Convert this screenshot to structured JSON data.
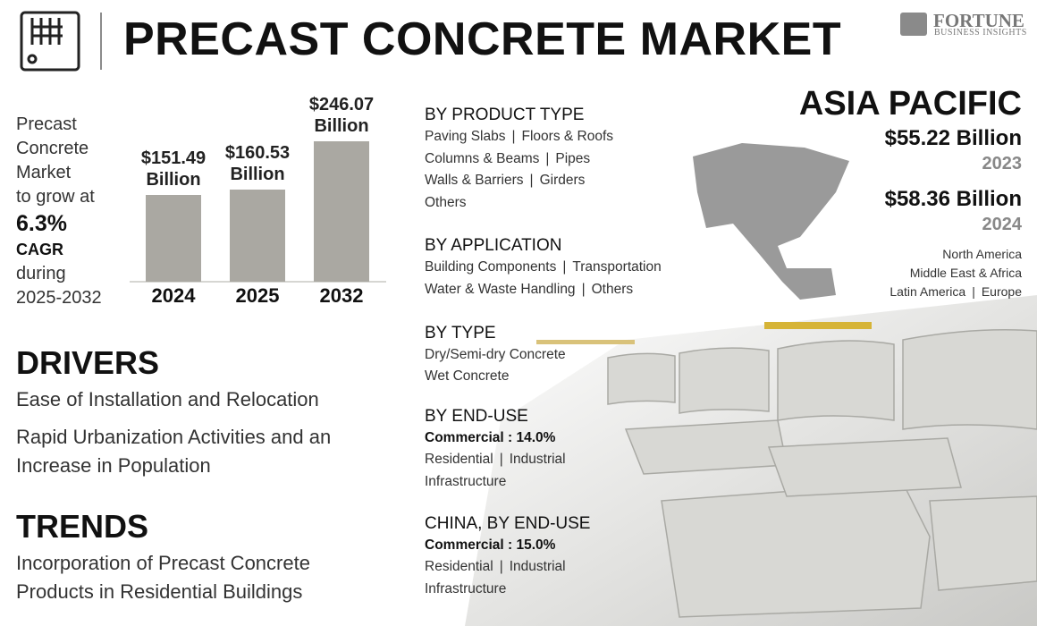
{
  "header": {
    "title": "PRECAST CONCRETE MARKET",
    "brand": "FORTUNE",
    "brand_sub": "BUSINESS INSIGHTS"
  },
  "separator": "|",
  "intro": {
    "lines": [
      "Precast",
      "Concrete",
      "Market",
      "to grow at"
    ],
    "cagr": "6.3%",
    "cagr_label": "CAGR",
    "period_lines": [
      "during",
      "2025-2032"
    ]
  },
  "chart_data": {
    "type": "bar",
    "categories": [
      "2024",
      "2025",
      "2032"
    ],
    "values": [
      151.49,
      160.53,
      246.07
    ],
    "value_labels": [
      "$151.49 Billion",
      "$160.53 Billion",
      "$246.07 Billion"
    ],
    "color": "#aaa8a2",
    "ylim": [
      0,
      250
    ]
  },
  "drivers": {
    "title": "DRIVERS",
    "items": [
      "Ease of Installation and Relocation",
      "Rapid Urbanization Activities and an Increase in Population"
    ]
  },
  "trends": {
    "title": "TRENDS",
    "items": [
      "Incorporation of Precast Concrete Products in Residential Buildings"
    ]
  },
  "segments": [
    {
      "title": "BY PRODUCT TYPE",
      "lines": [
        [
          "Paving Slabs",
          "Floors & Roofs"
        ],
        [
          "Columns & Beams",
          "Pipes"
        ],
        [
          "Walls & Barriers",
          "Girders"
        ],
        [
          "Others"
        ]
      ]
    },
    {
      "title": "BY APPLICATION",
      "lines": [
        [
          "Building Components",
          "Transportation"
        ],
        [
          "Water & Waste Handling",
          "Others"
        ]
      ]
    },
    {
      "title": "BY TYPE",
      "lines": [
        [
          "Dry/Semi-dry Concrete"
        ],
        [
          "Wet Concrete"
        ]
      ]
    },
    {
      "title": "BY END-USE",
      "highlight": "Commercial : 14.0%",
      "lines": [
        [
          "Residential",
          "Industrial"
        ],
        [
          "Infrastructure"
        ]
      ]
    },
    {
      "title": "CHINA, BY END-USE",
      "highlight": "Commercial : 15.0%",
      "lines": [
        [
          "Residential",
          "Industrial"
        ],
        [
          "Infrastructure"
        ]
      ]
    }
  ],
  "region": {
    "name": "ASIA PACIFIC",
    "stats": [
      {
        "value": "$55.22 Billion",
        "year": "2023"
      },
      {
        "value": "$58.36 Billion",
        "year": "2024"
      }
    ],
    "others": [
      [
        "North America"
      ],
      [
        "Middle East & Africa"
      ],
      [
        "Latin America",
        "Europe"
      ]
    ]
  }
}
